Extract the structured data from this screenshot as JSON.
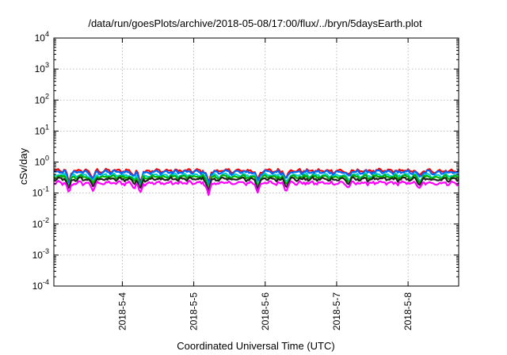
{
  "chart_data": {
    "type": "line",
    "title": "/data/run/goesPlots/archive/2018-05-08/17:00/flux/../bryn/5daysEarth.plot",
    "xlabel": "Coordinated Universal Time (UTC)",
    "ylabel": "cSv/day",
    "yscale": "log",
    "ylim": [
      0.0001,
      10000
    ],
    "yticks": [
      {
        "base": "10",
        "exp": "4"
      },
      {
        "base": "10",
        "exp": "3"
      },
      {
        "base": "10",
        "exp": "2"
      },
      {
        "base": "10",
        "exp": "1"
      },
      {
        "base": "10",
        "exp": "0"
      },
      {
        "base": "10",
        "exp": "-1"
      },
      {
        "base": "10",
        "exp": "-2"
      },
      {
        "base": "10",
        "exp": "-3"
      },
      {
        "base": "10",
        "exp": "-4"
      }
    ],
    "xlim": [
      "2018-05-03 01:00",
      "2018-05-08 17:00"
    ],
    "xticks": [
      "2018-5-4",
      "2018-5-5",
      "2018-5-6",
      "2018-5-7",
      "2018-5-8"
    ],
    "grid": true,
    "legend": "none",
    "series": [
      {
        "color": "#ff0000",
        "level": 0.52
      },
      {
        "color": "#0066ff",
        "level": 0.47
      },
      {
        "color": "#00d0d0",
        "level": 0.37
      },
      {
        "color": "#00b000",
        "level": 0.33
      },
      {
        "color": "#222222",
        "level": 0.28
      },
      {
        "color": "#ff00ff",
        "level": 0.21
      }
    ],
    "dips": [
      {
        "time": "2018-05-03 06:00",
        "factor": 0.4
      },
      {
        "time": "2018-05-03 14:00",
        "factor": 0.5
      },
      {
        "time": "2018-05-04 04:00",
        "factor": 0.7
      },
      {
        "time": "2018-05-04 06:00",
        "factor": 0.45
      },
      {
        "time": "2018-05-05 05:00",
        "factor": 0.35
      },
      {
        "time": "2018-05-05 21:30",
        "factor": 0.5
      },
      {
        "time": "2018-05-06 07:00",
        "factor": 0.6
      },
      {
        "time": "2018-05-07 04:00",
        "factor": 0.7
      },
      {
        "time": "2018-05-08 04:00",
        "factor": 0.6
      }
    ]
  }
}
